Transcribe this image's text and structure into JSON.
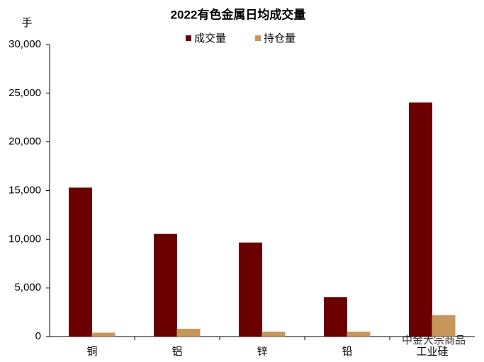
{
  "chart_data": {
    "type": "bar",
    "title": "2022有色金属日均成交量",
    "y_label": "手",
    "categories": [
      "铜",
      "铝",
      "锌",
      "铅",
      "工业硅"
    ],
    "series": [
      {
        "name": "成交量",
        "color": "#6b0000",
        "values": [
          15300,
          10550,
          9650,
          4050,
          24050
        ]
      },
      {
        "name": "持仓量",
        "color": "#c8955a",
        "values": [
          400,
          800,
          500,
          500,
          2200
        ]
      }
    ],
    "ylim": [
      0,
      30000
    ],
    "yticks": [
      0,
      {
        "value": 5000,
        "label": "5,000"
      },
      {
        "value": 10000,
        "label": "10,000"
      },
      {
        "value": 15000,
        "label": "15,000"
      },
      {
        "value": 20000,
        "label": "20,000"
      },
      {
        "value": 25000,
        "label": "25,000"
      },
      {
        "value": 30000,
        "label": "30,000"
      }
    ],
    "grid": false,
    "watermark": "中金大宗商品"
  }
}
